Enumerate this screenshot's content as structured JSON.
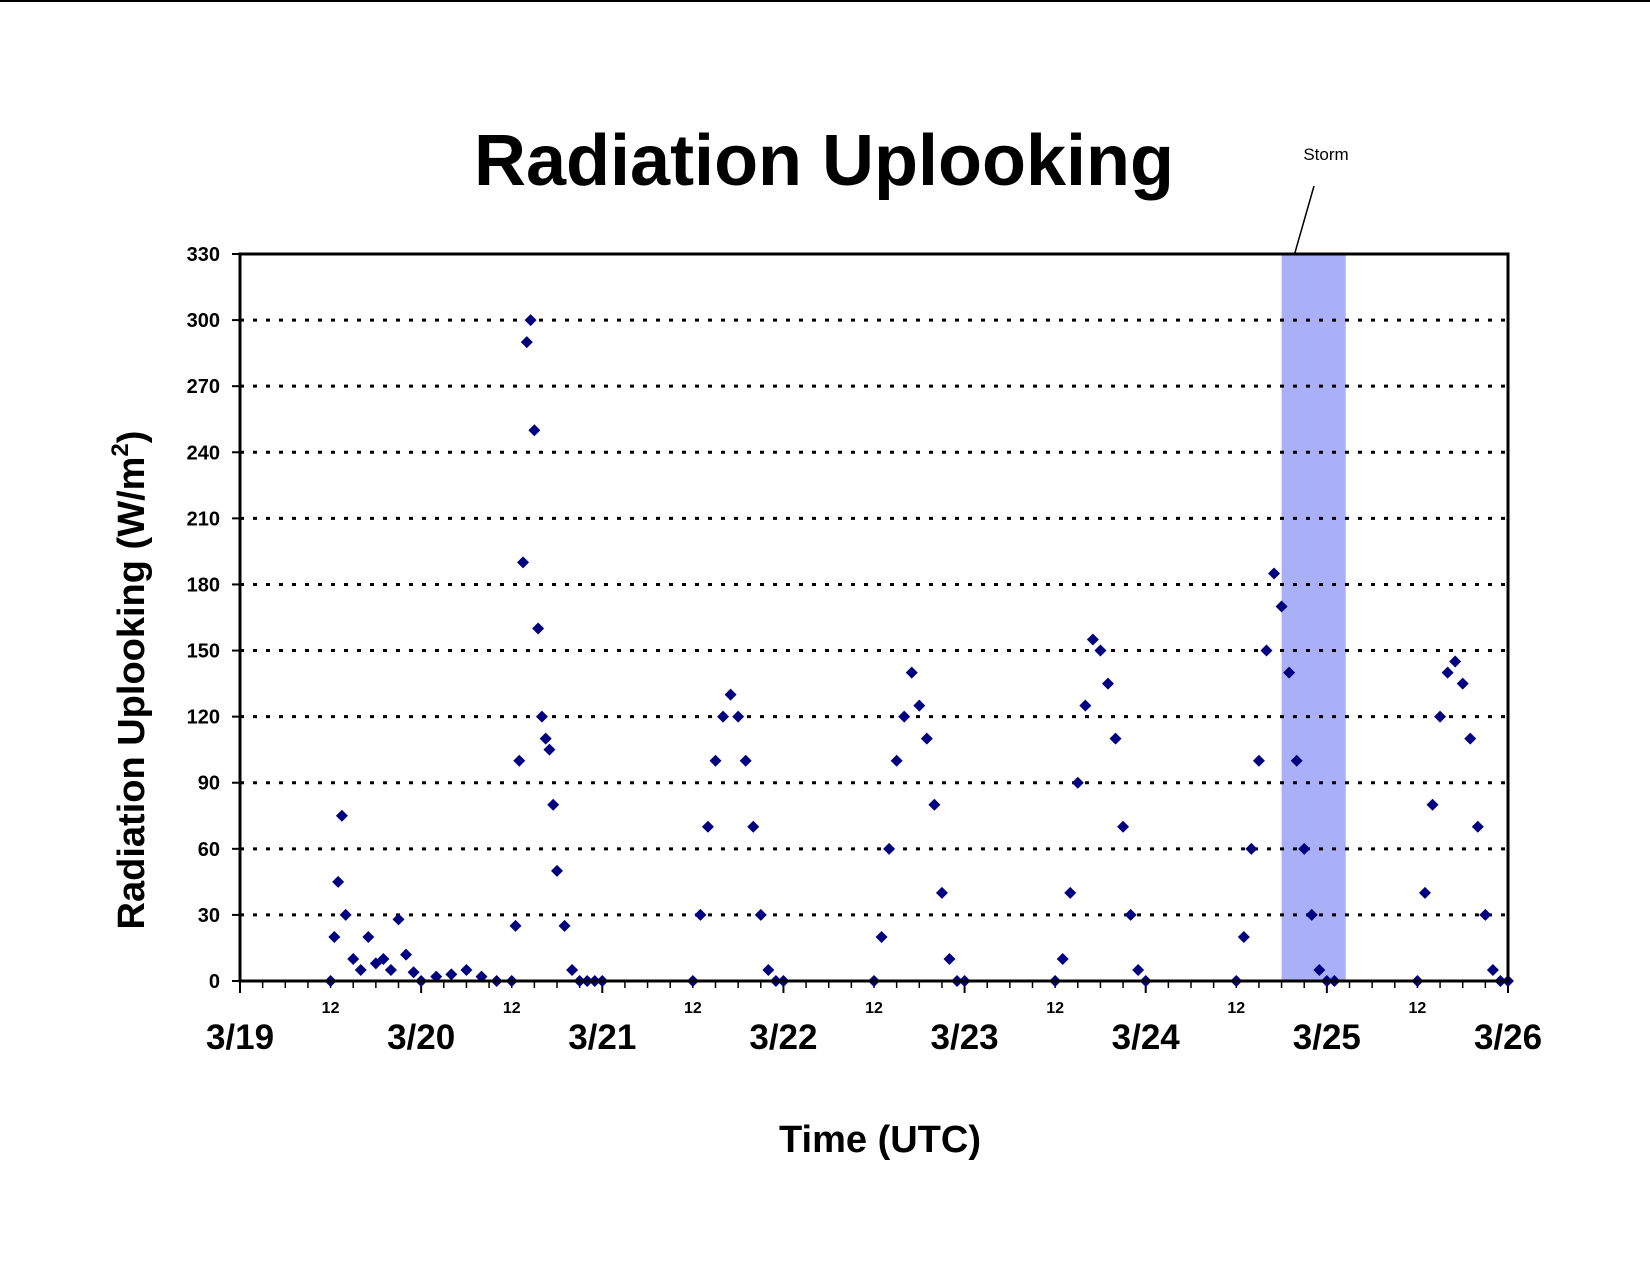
{
  "chart_data": {
    "type": "scatter",
    "title": "Radiation Uplooking",
    "xlabel": "Time (UTC)",
    "ylabel": "Radiation Uplooking (W/m",
    "ylabel_superscript": "2",
    "ylabel_close": ")",
    "ylim": [
      0,
      330
    ],
    "yticks": [
      0,
      30,
      60,
      90,
      120,
      150,
      180,
      210,
      240,
      270,
      300,
      330
    ],
    "xlim": [
      "3/19 00:00",
      "3/26 00:00"
    ],
    "x_major_labels": [
      "3/19",
      "3/20",
      "3/21",
      "3/22",
      "3/23",
      "3/24",
      "3/25",
      "3/26"
    ],
    "x_minor_label": "12",
    "grid": "horizontal dotted",
    "legend": "none",
    "marker": "diamond",
    "series_color": "#000080",
    "storm_band": {
      "label": "Storm",
      "x_start": "3/24 18:00",
      "x_end": "3/25 02:30",
      "color": "#aab0f8"
    },
    "series": [
      {
        "x": [
          "3/19 12:00",
          "3/19 12:30",
          "3/19 13:00",
          "3/19 13:30",
          "3/19 14:00",
          "3/19 15:00",
          "3/19 16:00",
          "3/19 17:00",
          "3/19 18:00",
          "3/19 19:00",
          "3/19 20:00",
          "3/19 21:00",
          "3/19 22:00",
          "3/19 23:00",
          "3/20 00:00",
          "3/20 02:00",
          "3/20 04:00",
          "3/20 06:00",
          "3/20 08:00",
          "3/20 10:00",
          "3/20 12:00",
          "3/20 12:30",
          "3/20 13:00",
          "3/20 13:30",
          "3/20 14:00",
          "3/20 14:30",
          "3/20 15:00",
          "3/20 15:30",
          "3/20 16:00",
          "3/20 16:30",
          "3/20 17:00",
          "3/20 17:30",
          "3/20 18:00",
          "3/20 19:00",
          "3/20 20:00",
          "3/20 21:00",
          "3/20 22:00",
          "3/20 23:00",
          "3/21 00:00",
          "3/21 12:00",
          "3/21 13:00",
          "3/21 14:00",
          "3/21 15:00",
          "3/21 16:00",
          "3/21 17:00",
          "3/21 18:00",
          "3/21 19:00",
          "3/21 20:00",
          "3/21 21:00",
          "3/21 22:00",
          "3/21 23:00",
          "3/22 00:00",
          "3/22 12:00",
          "3/22 13:00",
          "3/22 14:00",
          "3/22 15:00",
          "3/22 16:00",
          "3/22 17:00",
          "3/22 18:00",
          "3/22 19:00",
          "3/22 20:00",
          "3/22 21:00",
          "3/22 22:00",
          "3/22 23:00",
          "3/23 00:00",
          "3/23 12:00",
          "3/23 13:00",
          "3/23 14:00",
          "3/23 15:00",
          "3/23 16:00",
          "3/23 17:00",
          "3/23 18:00",
          "3/23 19:00",
          "3/23 20:00",
          "3/23 21:00",
          "3/23 22:00",
          "3/23 23:00",
          "3/24 00:00",
          "3/24 12:00",
          "3/24 13:00",
          "3/24 14:00",
          "3/24 15:00",
          "3/24 16:00",
          "3/24 17:00",
          "3/24 18:00",
          "3/24 19:00",
          "3/24 20:00",
          "3/24 21:00",
          "3/24 22:00",
          "3/24 23:00",
          "3/25 00:00",
          "3/25 01:00",
          "3/25 12:00",
          "3/25 13:00",
          "3/25 14:00",
          "3/25 15:00",
          "3/25 16:00",
          "3/25 17:00",
          "3/25 18:00",
          "3/25 19:00",
          "3/25 20:00",
          "3/25 21:00",
          "3/25 22:00",
          "3/25 23:00",
          "3/26 00:00"
        ],
        "y": [
          0,
          20,
          45,
          75,
          30,
          10,
          5,
          20,
          8,
          10,
          5,
          28,
          12,
          4,
          0,
          2,
          3,
          5,
          2,
          0,
          0,
          25,
          100,
          190,
          290,
          300,
          250,
          160,
          120,
          110,
          105,
          80,
          50,
          25,
          5,
          0,
          0,
          0,
          0,
          0,
          30,
          70,
          100,
          120,
          130,
          120,
          100,
          70,
          30,
          5,
          0,
          0,
          0,
          20,
          60,
          100,
          120,
          140,
          125,
          110,
          80,
          40,
          10,
          0,
          0,
          0,
          10,
          40,
          90,
          125,
          155,
          150,
          135,
          110,
          70,
          30,
          5,
          0,
          0,
          20,
          60,
          100,
          150,
          185,
          170,
          140,
          100,
          60,
          30,
          5,
          0,
          0,
          0,
          40,
          80,
          120,
          140,
          145,
          135,
          110,
          70,
          30,
          5,
          0,
          0
        ]
      }
    ]
  }
}
